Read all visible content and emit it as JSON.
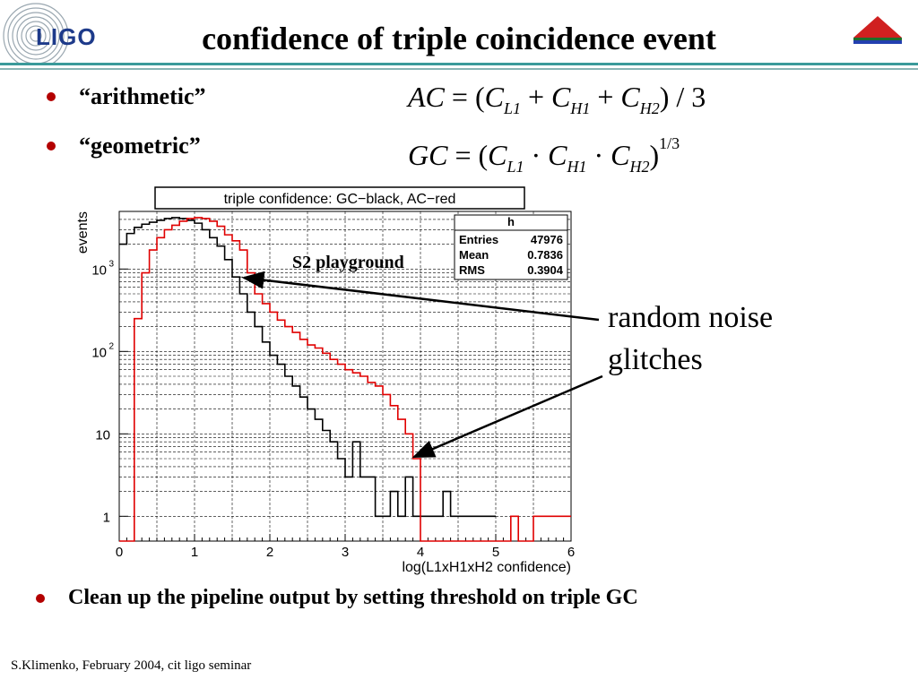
{
  "slide": {
    "title": "confidence of triple coincidence event",
    "logo_text": "LIGO",
    "bullets": [
      "“arithmetic”",
      "“geometric”"
    ],
    "bottom_bullet": "Clean up the pipeline output by setting threshold on triple GC",
    "footer": "S.Klimenko, February 2004, cit ligo seminar"
  },
  "formulas": {
    "ac": {
      "lhs": "AC",
      "c1": "C",
      "s1": "L1",
      "c2": "C",
      "s2": "H1",
      "c3": "C",
      "s3": "H2",
      "tail": ") / 3"
    },
    "gc": {
      "lhs": "GC",
      "c1": "C",
      "s1": "L1",
      "c2": "C",
      "s2": "H1",
      "c3": "C",
      "s3": "H2",
      "exp": "1/3"
    }
  },
  "annotations": {
    "s2": "S2 playground",
    "noise_line1": "random noise",
    "noise_line2": "glitches"
  },
  "colors": {
    "bullet": "#b30000",
    "rule_top": "#3a9a9a",
    "rule_bottom": "#8ab5b5",
    "gc_series": "#000000",
    "ac_series": "#e00000",
    "logo": "#1d3a8a"
  },
  "chart_data": {
    "type": "histogram",
    "title": "triple confidence: GC−black, AC−red",
    "xlabel": "log(L1xH1xH2 confidence)",
    "ylabel": "events",
    "xlim": [
      0,
      6
    ],
    "ylim": [
      0.5,
      5000
    ],
    "yscale": "log",
    "grid": true,
    "x_ticks": [
      "0",
      "1",
      "2",
      "3",
      "4",
      "5",
      "6"
    ],
    "y_ticks": [
      {
        "value": 1,
        "label": "1"
      },
      {
        "value": 10,
        "label": "10"
      },
      {
        "value": 100,
        "label": "10",
        "exp": "2"
      },
      {
        "value": 1000,
        "label": "10",
        "exp": "3"
      }
    ],
    "bin_width": 0.1,
    "bin_start": 0,
    "stats": {
      "name": "h",
      "rows": [
        [
          "Entries",
          "47976"
        ],
        [
          "Mean",
          "0.7836"
        ],
        [
          "RMS",
          "0.3904"
        ]
      ]
    },
    "series": [
      {
        "name": "GC",
        "values": [
          2000,
          2700,
          3200,
          3500,
          3700,
          3900,
          4100,
          4200,
          4100,
          3900,
          3600,
          3000,
          2400,
          1900,
          1300,
          800,
          500,
          300,
          200,
          130,
          90,
          70,
          50,
          38,
          28,
          20,
          15,
          11,
          8,
          5,
          3,
          8,
          3,
          3,
          1,
          1,
          2,
          1,
          3,
          1,
          1,
          1,
          1,
          2,
          1,
          1,
          1,
          1,
          1,
          1
        ]
      },
      {
        "name": "AC",
        "values": [
          0,
          0,
          250,
          900,
          1700,
          2400,
          3000,
          3400,
          3800,
          4100,
          4200,
          4100,
          3800,
          3300,
          2600,
          2200,
          1700,
          900,
          500,
          380,
          300,
          240,
          200,
          170,
          140,
          120,
          110,
          95,
          80,
          70,
          60,
          55,
          50,
          42,
          38,
          30,
          22,
          15,
          10,
          5,
          0,
          0,
          0,
          0,
          0,
          0,
          0,
          0,
          0,
          0,
          0,
          0,
          1,
          0,
          0,
          1,
          1,
          1,
          1,
          1
        ]
      }
    ]
  }
}
